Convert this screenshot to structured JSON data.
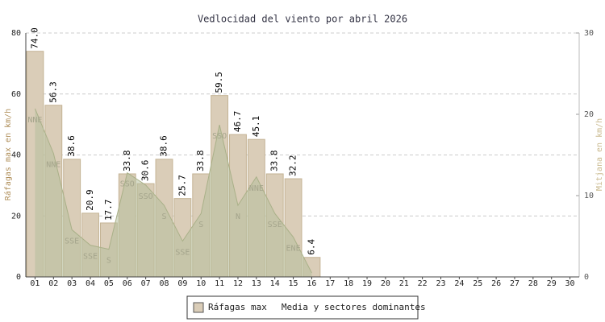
{
  "chart_data": {
    "type": "bar",
    "title": "Vedlocidad del viento por abril 2026",
    "y_label": "Ráfagas max en km/h",
    "y2_label": "Mitjana en km/h",
    "categories": [
      "01",
      "02",
      "03",
      "04",
      "05",
      "06",
      "07",
      "08",
      "09",
      "10",
      "11",
      "12",
      "13",
      "14",
      "15",
      "16",
      "17",
      "18",
      "19",
      "20",
      "21",
      "22",
      "23",
      "24",
      "25",
      "26",
      "27",
      "28",
      "29",
      "30"
    ],
    "series": [
      {
        "name": "Ráfagas max",
        "type": "bar",
        "color": "#dacdb8",
        "values": [
          74.0,
          56.3,
          38.6,
          20.9,
          17.7,
          33.8,
          30.6,
          38.6,
          25.7,
          33.8,
          59.5,
          46.7,
          45.1,
          33.8,
          32.2,
          6.4,
          null,
          null,
          null,
          null,
          null,
          null,
          null,
          null,
          null,
          null,
          null,
          null,
          null,
          null
        ],
        "value_labels": [
          "74.0",
          "56.3",
          "38.6",
          "20.9",
          "17.7",
          "33.8",
          "30.6",
          "38.6",
          "25.7",
          "33.8",
          "59.5",
          "46.7",
          "45.1",
          "33.8",
          "32.2",
          "6.4",
          null,
          null,
          null,
          null,
          null,
          null,
          null,
          null,
          null,
          null,
          null,
          null,
          null,
          null
        ]
      },
      {
        "name": "Media y sectores dominantes",
        "type": "area",
        "color": "#b7bf9c",
        "axis": "y2",
        "values": [
          20.7,
          15.2,
          5.8,
          3.9,
          3.4,
          12.8,
          11.3,
          8.8,
          4.4,
          7.8,
          18.7,
          8.8,
          12.3,
          7.8,
          4.9,
          0.5,
          null,
          null,
          null,
          null,
          null,
          null,
          null,
          null,
          null,
          null,
          null,
          null,
          null,
          null
        ],
        "sectors": [
          "NNE",
          "NNE",
          "SSE",
          "SSE",
          "S",
          "SSO",
          "SSO",
          "S",
          "SSE",
          "S",
          "SSO",
          "N",
          "NNE",
          "SSE",
          "ENE",
          null,
          null,
          null,
          null,
          null,
          null,
          null,
          null,
          null,
          null,
          null,
          null,
          null,
          null,
          null
        ]
      }
    ],
    "ylim": [
      0,
      80
    ],
    "yticks": [
      0,
      20,
      40,
      60,
      80
    ],
    "y2lim": [
      0,
      30
    ],
    "y2ticks": [
      0,
      10,
      20,
      30
    ],
    "grid": true,
    "legend": "bottom"
  }
}
